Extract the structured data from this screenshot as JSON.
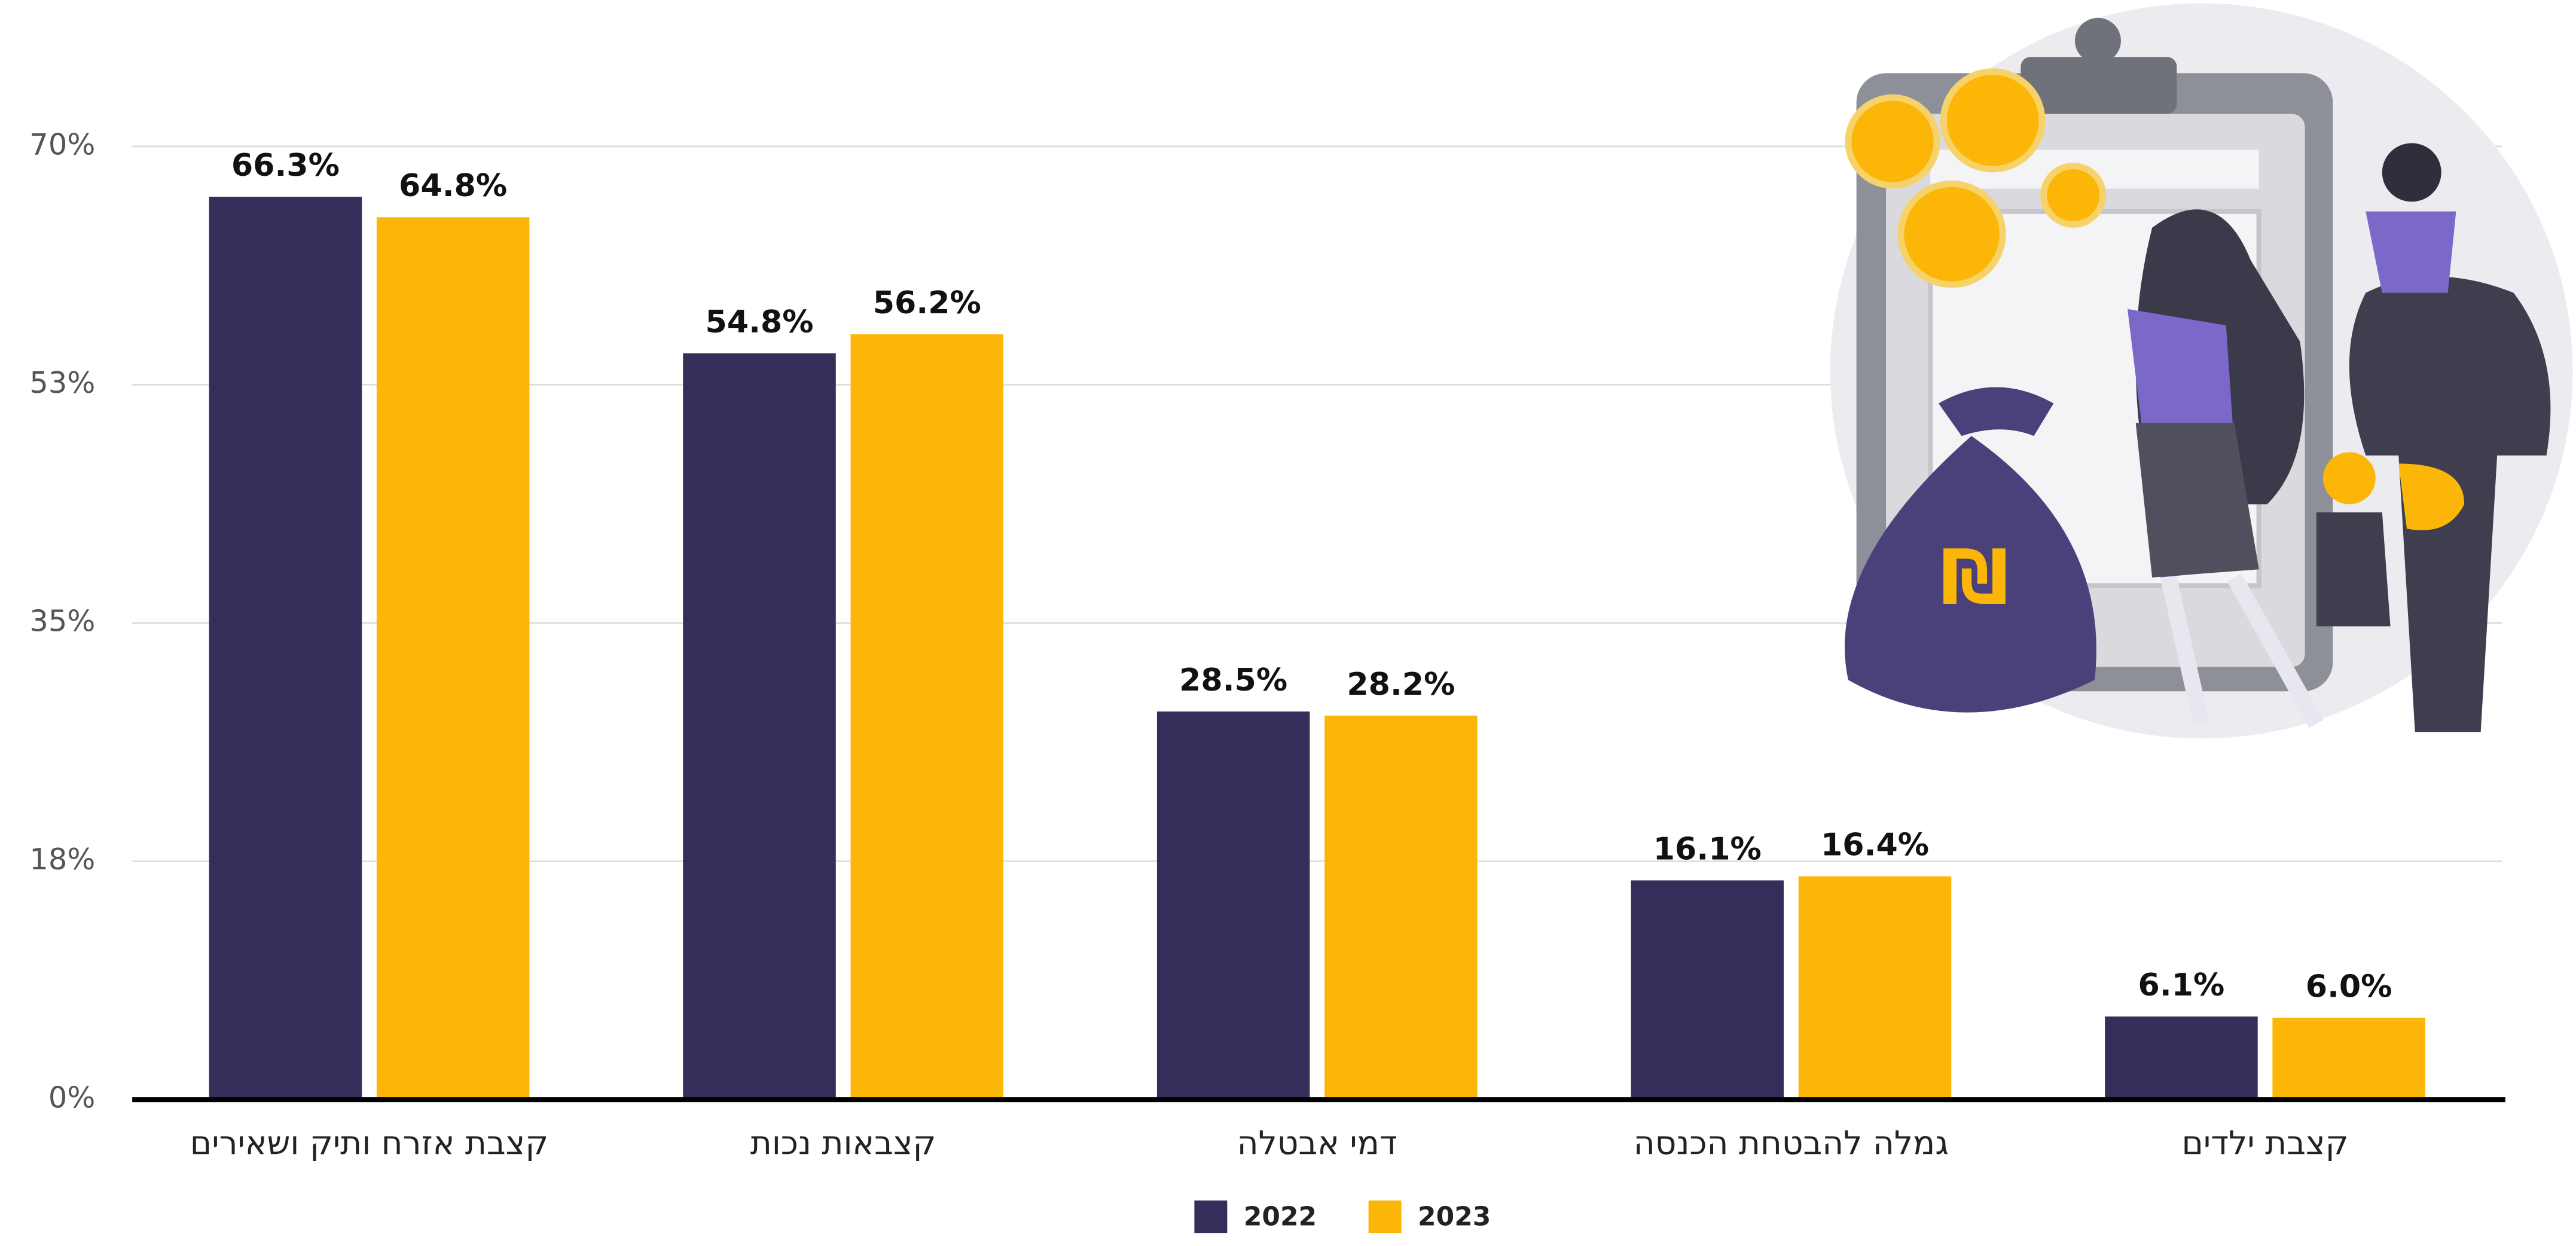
{
  "chart_data": {
    "type": "bar",
    "categories": [
      "קצבת אזרח ותיק ושאירים",
      "קצבאות נכות",
      "דמי אבטלה",
      "גמלה להבטחת הכנסה",
      "קצבת ילדים"
    ],
    "series": [
      {
        "name": "2022",
        "color": "#352d5a",
        "values": [
          66.3,
          54.8,
          28.5,
          16.1,
          6.1
        ],
        "value_labels": [
          "66.3%",
          "54.8%",
          "28.5%",
          "16.1%",
          "6.1%"
        ]
      },
      {
        "name": "2023",
        "color": "#fbb608",
        "values": [
          64.8,
          56.2,
          28.2,
          16.4,
          6.0
        ],
        "value_labels": [
          "64.8%",
          "56.2%",
          "28.2%",
          "16.4%",
          "6.0%"
        ]
      }
    ],
    "ylim": [
      0,
      70
    ],
    "yticks": [
      {
        "value": 0,
        "label": "0%"
      },
      {
        "value": 17.5,
        "label": "18%"
      },
      {
        "value": 35,
        "label": "35%"
      },
      {
        "value": 52.5,
        "label": "53%"
      },
      {
        "value": 70,
        "label": "70%"
      }
    ],
    "grid": true,
    "legend": "bottom"
  }
}
